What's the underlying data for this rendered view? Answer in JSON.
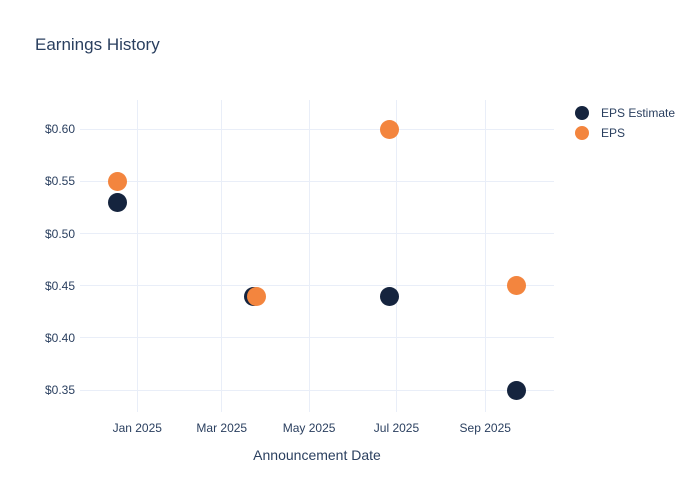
{
  "chart_data": {
    "type": "scatter",
    "title": "Earnings History",
    "xlabel": "Announcement Date",
    "ylabel": "",
    "grid": true,
    "legend_position": "right-top",
    "x_axis": {
      "range": [
        "2024-11-22",
        "2025-10-19"
      ],
      "ticks": [
        {
          "date": "2025-01-01",
          "label": "Jan 2025"
        },
        {
          "date": "2025-03-01",
          "label": "Mar 2025"
        },
        {
          "date": "2025-05-01",
          "label": "May 2025"
        },
        {
          "date": "2025-07-01",
          "label": "Jul 2025"
        },
        {
          "date": "2025-09-01",
          "label": "Sep 2025"
        }
      ]
    },
    "y_axis": {
      "range": [
        0.329,
        0.628
      ],
      "ticks": [
        {
          "value": 0.6,
          "label": "$0.60"
        },
        {
          "value": 0.55,
          "label": "$0.55"
        },
        {
          "value": 0.5,
          "label": "$0.50"
        },
        {
          "value": 0.45,
          "label": "$0.45"
        },
        {
          "value": 0.4,
          "label": "$0.40"
        },
        {
          "value": 0.35,
          "label": "$0.35"
        }
      ]
    },
    "series": [
      {
        "name": "EPS Estimate",
        "color": "#15243e",
        "points": [
          {
            "x": "2024-12-18",
            "y": 0.53
          },
          {
            "x": "2025-03-23",
            "y": 0.44
          },
          {
            "x": "2025-06-26",
            "y": 0.44
          },
          {
            "x": "2025-09-23",
            "y": 0.35
          }
        ]
      },
      {
        "name": "EPS",
        "color": "#f3853e",
        "points": [
          {
            "x": "2024-12-18",
            "y": 0.55
          },
          {
            "x": "2025-03-25",
            "y": 0.44
          },
          {
            "x": "2025-06-26",
            "y": 0.6
          },
          {
            "x": "2025-09-23",
            "y": 0.45
          }
        ]
      }
    ]
  },
  "colors": {
    "text": "#2a3f5f",
    "grid": "#e9eef8",
    "background": "#ffffff",
    "eps_estimate": "#15243e",
    "eps": "#f3853e"
  }
}
